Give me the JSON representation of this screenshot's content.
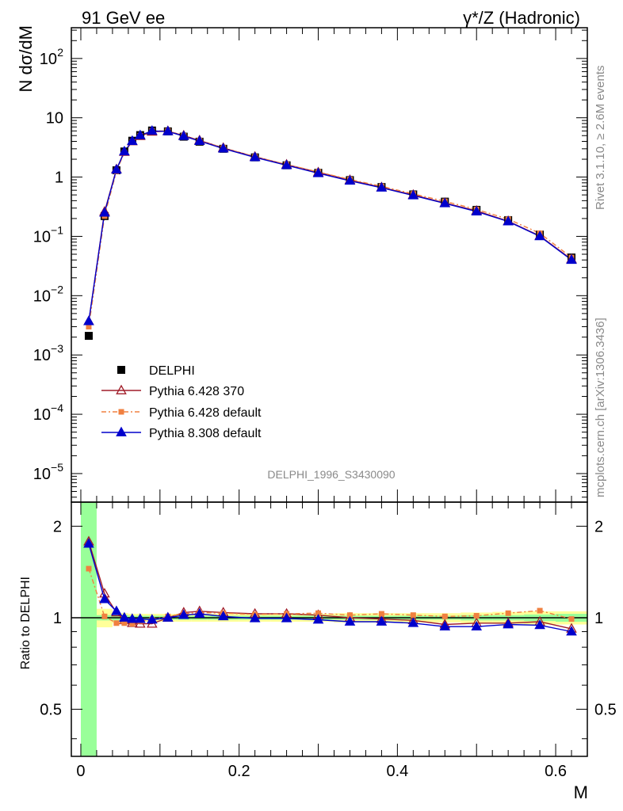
{
  "header": {
    "left_title": "91 GeV ee",
    "right_title": "γ*/Z (Hadronic)"
  },
  "side_texts": {
    "rivet": "Rivet 3.1.10, ≥ 2.6M events",
    "mcplots": "mcplots.cern.ch [arXiv:1306.3436]"
  },
  "watermark": "DELPHI_1996_S3430090",
  "chart_data": [
    {
      "type": "line",
      "panel": "main",
      "ylabel": "N dσ/dM",
      "yscale": "log",
      "ylim": [
        3.3e-06,
        330
      ],
      "xlim": [
        -0.012,
        0.64
      ],
      "y_ticks": [
        {
          "v": 1e-05,
          "base": "10",
          "exp": "−5"
        },
        {
          "v": 0.0001,
          "base": "10",
          "exp": "−4"
        },
        {
          "v": 0.001,
          "base": "10",
          "exp": "−3"
        },
        {
          "v": 0.01,
          "base": "10",
          "exp": "−2"
        },
        {
          "v": 0.1,
          "base": "10",
          "exp": "−1"
        },
        {
          "v": 1,
          "base": "1",
          "exp": ""
        },
        {
          "v": 10,
          "base": "10",
          "exp": ""
        },
        {
          "v": 100,
          "base": "10",
          "exp": "2"
        }
      ],
      "x": [
        0.01,
        0.03,
        0.045,
        0.055,
        0.065,
        0.075,
        0.09,
        0.11,
        0.13,
        0.15,
        0.18,
        0.22,
        0.26,
        0.3,
        0.34,
        0.38,
        0.42,
        0.46,
        0.5,
        0.54,
        0.58,
        0.62
      ],
      "series": [
        {
          "name": "DELPHI",
          "style": "data",
          "color": "#000000",
          "values": [
            0.0021,
            0.22,
            1.3,
            2.7,
            4.1,
            5.1,
            6.1,
            5.9,
            4.8,
            3.95,
            3.0,
            2.15,
            1.58,
            1.18,
            0.89,
            0.68,
            0.51,
            0.385,
            0.28,
            0.188,
            0.107,
            0.044
          ]
        },
        {
          "name": "Pythia 6.428 370",
          "style": "open-triangle",
          "color": "#a01c28",
          "values": [
            0.0037,
            0.26,
            1.35,
            2.65,
            4.0,
            4.9,
            5.8,
            5.95,
            5.0,
            4.15,
            3.1,
            2.2,
            1.62,
            1.2,
            0.89,
            0.67,
            0.5,
            0.365,
            0.27,
            0.18,
            0.102,
            0.041
          ]
        },
        {
          "name": "Pythia 6.428 default",
          "style": "square-dashed",
          "color": "#f08040",
          "values": [
            0.003,
            0.22,
            1.25,
            2.6,
            3.95,
            5.0,
            6.0,
            6.0,
            4.95,
            4.1,
            3.1,
            2.2,
            1.63,
            1.22,
            0.91,
            0.7,
            0.52,
            0.39,
            0.285,
            0.195,
            0.113,
            0.044
          ]
        },
        {
          "name": "Pythia 8.308 default",
          "style": "filled-triangle",
          "color": "#0000cc",
          "values": [
            0.0037,
            0.25,
            1.33,
            2.7,
            4.05,
            5.05,
            6.0,
            5.9,
            4.9,
            4.05,
            3.02,
            2.15,
            1.58,
            1.16,
            0.865,
            0.66,
            0.49,
            0.36,
            0.262,
            0.178,
            0.1,
            0.04
          ]
        }
      ],
      "legend": {
        "placement": "lower-left"
      }
    },
    {
      "type": "line",
      "panel": "ratio",
      "ylabel": "Ratio to DELPHI",
      "xlabel": "M",
      "yscale": "log",
      "ylim": [
        0.35,
        2.4
      ],
      "y_ticks": [
        {
          "v": 0.5,
          "label": "0.5"
        },
        {
          "v": 1,
          "label": "1"
        },
        {
          "v": 2,
          "label": "2"
        }
      ],
      "x_ticks": [
        {
          "v": 0,
          "label": "0"
        },
        {
          "v": 0.2,
          "label": "0.2"
        },
        {
          "v": 0.4,
          "label": "0.4"
        },
        {
          "v": 0.6,
          "label": "0.6"
        }
      ],
      "x": [
        0.01,
        0.03,
        0.045,
        0.055,
        0.065,
        0.075,
        0.09,
        0.11,
        0.13,
        0.15,
        0.18,
        0.22,
        0.26,
        0.3,
        0.34,
        0.38,
        0.42,
        0.46,
        0.5,
        0.54,
        0.58,
        0.62
      ],
      "series": [
        {
          "name": "Pythia 6.428 370",
          "color": "#a01c28",
          "values": [
            1.78,
            1.2,
            1.04,
            0.98,
            0.96,
            0.955,
            0.955,
            1.0,
            1.04,
            1.05,
            1.04,
            1.03,
            1.03,
            1.02,
            1.0,
            0.99,
            0.98,
            0.95,
            0.96,
            0.96,
            0.97,
            0.92
          ]
        },
        {
          "name": "Pythia 6.428 default",
          "color": "#f08040",
          "values": [
            1.45,
            1.01,
            0.96,
            0.96,
            0.955,
            0.975,
            0.985,
            1.01,
            1.03,
            1.04,
            1.035,
            1.025,
            1.03,
            1.035,
            1.02,
            1.03,
            1.02,
            1.01,
            1.015,
            1.035,
            1.055,
            0.99
          ]
        },
        {
          "name": "Pythia 8.308 default",
          "color": "#0000cc",
          "values": [
            1.75,
            1.15,
            1.05,
            1.0,
            0.99,
            0.99,
            0.985,
            1.0,
            1.02,
            1.03,
            1.01,
            0.995,
            0.995,
            0.985,
            0.97,
            0.97,
            0.96,
            0.935,
            0.935,
            0.95,
            0.945,
            0.9
          ]
        }
      ],
      "bands": {
        "x_edges": [
          0.0,
          0.02,
          0.04,
          0.05,
          0.06,
          0.07,
          0.08,
          0.1,
          0.12,
          0.14,
          0.16,
          0.2,
          0.24,
          0.28,
          0.32,
          0.36,
          0.4,
          0.44,
          0.48,
          0.52,
          0.56,
          0.6,
          0.64
        ],
        "stat_sys_halfwidth": [
          0.3,
          0.07,
          0.04,
          0.035,
          0.03,
          0.03,
          0.03,
          0.03,
          0.03,
          0.03,
          0.03,
          0.03,
          0.03,
          0.03,
          0.035,
          0.035,
          0.035,
          0.035,
          0.04,
          0.045,
          0.05,
          0.05
        ],
        "stat_halfwidth": [
          0.3,
          0.02,
          0.02,
          0.02,
          0.015,
          0.015,
          0.015,
          0.015,
          0.015,
          0.015,
          0.015,
          0.015,
          0.015,
          0.015,
          0.015,
          0.015,
          0.015,
          0.015,
          0.02,
          0.02,
          0.025,
          0.03
        ],
        "colors": {
          "total": "#ffff99",
          "stat": "#99ff99"
        }
      }
    }
  ]
}
